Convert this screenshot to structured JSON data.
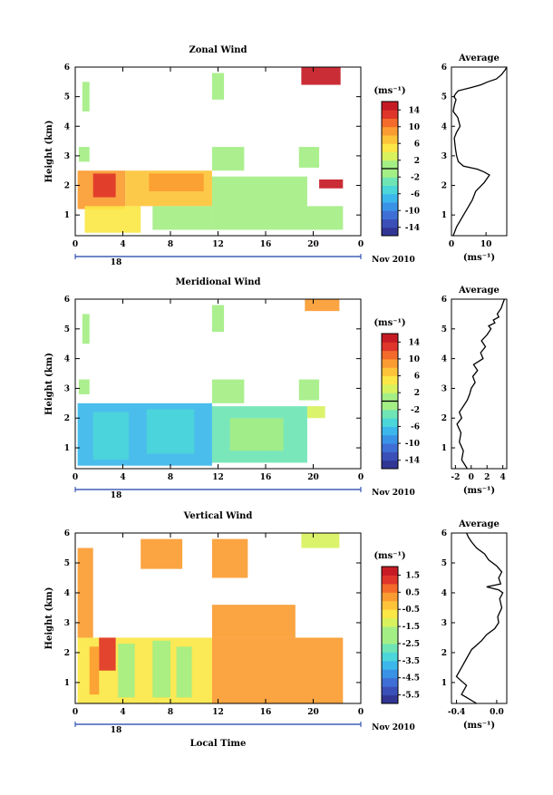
{
  "figure": {
    "date_label": "Nov 2010",
    "day_label": "18",
    "xlabel": "Local Time",
    "ylabel": "Height (km)",
    "avg_title": "Average",
    "unit": "(ms⁻¹)"
  },
  "chart_data": [
    {
      "type": "heatmap",
      "title": "Zonal Wind",
      "xlabel": "Local Time",
      "ylabel": "Height (km)",
      "x_ticks": [
        "0",
        "4",
        "8",
        "12",
        "16",
        "20",
        "0"
      ],
      "x_range": [
        0,
        24
      ],
      "y_ticks": [
        "1",
        "2",
        "3",
        "4",
        "5",
        "6"
      ],
      "y_range": [
        0.3,
        6
      ],
      "colorbar": {
        "label": "(ms⁻¹)",
        "ticks": [
          "14",
          "10",
          "6",
          "2",
          "-2",
          "-6",
          "-10",
          "-14"
        ],
        "range": [
          -16,
          16
        ],
        "zero_line": 0
      },
      "layers": [
        {
          "x0": 0.2,
          "x1": 4.2,
          "y0": 1.2,
          "y1": 2.5,
          "value": 8
        },
        {
          "x0": 1.5,
          "x1": 3.4,
          "y0": 1.6,
          "y1": 2.4,
          "value": 12
        },
        {
          "x0": 4.2,
          "x1": 11.5,
          "y0": 1.3,
          "y1": 2.5,
          "value": 6
        },
        {
          "x0": 6.2,
          "x1": 10.8,
          "y0": 1.8,
          "y1": 2.4,
          "value": 9
        },
        {
          "x0": 0.8,
          "x1": 5.5,
          "y0": 0.4,
          "y1": 1.3,
          "value": 4
        },
        {
          "x0": 6.5,
          "x1": 11.5,
          "y0": 0.5,
          "y1": 1.3,
          "value": 1
        },
        {
          "x0": 11.5,
          "x1": 19.5,
          "y0": 0.5,
          "y1": 2.3,
          "value": -1
        },
        {
          "x0": 19.5,
          "x1": 22.5,
          "y0": 0.5,
          "y1": 1.3,
          "value": -1
        },
        {
          "x0": 11.5,
          "x1": 14.2,
          "y0": 2.5,
          "y1": 3.3,
          "value": -1
        },
        {
          "x0": 18.8,
          "x1": 20.5,
          "y0": 2.6,
          "y1": 3.3,
          "value": 0
        },
        {
          "x0": 20.5,
          "x1": 22.5,
          "y0": 1.9,
          "y1": 2.2,
          "value": 14
        },
        {
          "x0": 19.0,
          "x1": 22.3,
          "y0": 5.4,
          "y1": 6.0,
          "value": 15
        },
        {
          "x0": 11.5,
          "x1": 12.5,
          "y0": 4.9,
          "y1": 5.8,
          "value": 0
        },
        {
          "x0": 0.6,
          "x1": 1.2,
          "y0": 4.5,
          "y1": 5.5,
          "value": 0
        },
        {
          "x0": 0.3,
          "x1": 1.2,
          "y0": 2.8,
          "y1": 3.3,
          "value": 0
        }
      ],
      "average": {
        "title": "Average",
        "xlabel": "(ms⁻¹)",
        "x_ticks": [
          "0",
          "10"
        ],
        "x_range": [
          0,
          16
        ],
        "y_range": [
          0.3,
          6
        ],
        "x": [
          0.5,
          1.5,
          3.0,
          4.5,
          6.0,
          7.0,
          9.5,
          11.0,
          9.5,
          7.5,
          3.5,
          2.0,
          1.5,
          1.2,
          1.0,
          0.8,
          1.5,
          2.5,
          1.8,
          0.5,
          0.8,
          1.3,
          0.7,
          1.2,
          2.0,
          5.5,
          8.5,
          10.5,
          13.0,
          14.5,
          15.5,
          16.0
        ],
        "y": [
          0.3,
          0.6,
          0.9,
          1.2,
          1.5,
          1.8,
          2.1,
          2.35,
          2.45,
          2.55,
          2.65,
          2.8,
          3.0,
          3.2,
          3.4,
          3.6,
          3.8,
          4.0,
          4.3,
          4.5,
          4.7,
          4.9,
          5.0,
          5.1,
          5.2,
          5.3,
          5.4,
          5.5,
          5.6,
          5.75,
          5.9,
          6.0
        ]
      }
    },
    {
      "type": "heatmap",
      "title": "Meridional Wind",
      "xlabel": "Local Time",
      "ylabel": "Height (km)",
      "x_ticks": [
        "0",
        "4",
        "8",
        "12",
        "16",
        "20",
        "0"
      ],
      "x_range": [
        0,
        24
      ],
      "y_ticks": [
        "1",
        "2",
        "3",
        "4",
        "5",
        "6"
      ],
      "y_range": [
        0.3,
        6
      ],
      "colorbar": {
        "label": "(ms⁻¹)",
        "ticks": [
          "14",
          "10",
          "6",
          "2",
          "-2",
          "-6",
          "-10",
          "-14"
        ],
        "range": [
          -16,
          16
        ],
        "zero_line": 0
      },
      "layers": [
        {
          "x0": 0.2,
          "x1": 11.5,
          "y0": 0.4,
          "y1": 2.5,
          "value": -7
        },
        {
          "x0": 1.5,
          "x1": 4.5,
          "y0": 0.6,
          "y1": 2.2,
          "value": -4
        },
        {
          "x0": 6.0,
          "x1": 10.0,
          "y0": 0.8,
          "y1": 2.3,
          "value": -5
        },
        {
          "x0": 11.5,
          "x1": 19.5,
          "y0": 0.5,
          "y1": 2.4,
          "value": -2
        },
        {
          "x0": 13.0,
          "x1": 17.5,
          "y0": 0.9,
          "y1": 2.0,
          "value": 0
        },
        {
          "x0": 19.5,
          "x1": 21.0,
          "y0": 2.0,
          "y1": 2.4,
          "value": 3
        },
        {
          "x0": 11.5,
          "x1": 14.2,
          "y0": 2.5,
          "y1": 3.3,
          "value": -1
        },
        {
          "x0": 18.8,
          "x1": 20.5,
          "y0": 2.6,
          "y1": 3.3,
          "value": 0
        },
        {
          "x0": 19.3,
          "x1": 22.2,
          "y0": 5.6,
          "y1": 6.0,
          "value": 8
        },
        {
          "x0": 11.5,
          "x1": 12.5,
          "y0": 4.9,
          "y1": 5.8,
          "value": 0
        },
        {
          "x0": 0.6,
          "x1": 1.2,
          "y0": 4.5,
          "y1": 5.5,
          "value": 0
        },
        {
          "x0": 0.3,
          "x1": 1.2,
          "y0": 2.8,
          "y1": 3.3,
          "value": 0
        }
      ],
      "average": {
        "title": "Average",
        "xlabel": "(ms⁻¹)",
        "x_ticks": [
          "-2",
          "0",
          "2",
          "4"
        ],
        "x_range": [
          -2.5,
          4.5
        ],
        "y_range": [
          0.3,
          6
        ],
        "x": [
          -0.5,
          -1.2,
          -1.0,
          -1.5,
          -1.3,
          -1.8,
          -1.2,
          -1.5,
          -1.0,
          -0.5,
          -0.2,
          0.0,
          0.5,
          0.2,
          0.8,
          0.3,
          1.5,
          1.2,
          1.8,
          1.3,
          2.0,
          2.5,
          2.2,
          3.0,
          2.8,
          3.5,
          3.3,
          3.8,
          4.0,
          4.2
        ],
        "y": [
          0.3,
          0.6,
          0.9,
          1.2,
          1.5,
          1.8,
          2.0,
          2.2,
          2.4,
          2.6,
          2.8,
          3.0,
          3.2,
          3.4,
          3.6,
          3.8,
          4.0,
          4.2,
          4.4,
          4.6,
          4.8,
          5.0,
          5.1,
          5.2,
          5.3,
          5.4,
          5.5,
          5.7,
          5.85,
          6.0
        ]
      }
    },
    {
      "type": "heatmap",
      "title": "Vertical Wind",
      "xlabel": "Local Time",
      "ylabel": "Height (km)",
      "x_ticks": [
        "0",
        "4",
        "8",
        "12",
        "16",
        "20",
        "0"
      ],
      "x_range": [
        0,
        24
      ],
      "y_ticks": [
        "1",
        "2",
        "3",
        "4",
        "5",
        "6"
      ],
      "y_range": [
        0.3,
        6
      ],
      "colorbar": {
        "label": "(ms⁻¹)",
        "ticks": [
          "1.5",
          "0.5",
          "-0.5",
          "-1.5",
          "-2.5",
          "-3.5",
          "-4.5",
          "-5.5"
        ],
        "range": [
          -6,
          2
        ]
      },
      "layers": [
        {
          "x0": 0.2,
          "x1": 11.5,
          "y0": 0.3,
          "y1": 2.5,
          "value": -0.9
        },
        {
          "x0": 2.0,
          "x1": 3.4,
          "y0": 1.4,
          "y1": 2.5,
          "value": 1.2
        },
        {
          "x0": 1.2,
          "x1": 2.0,
          "y0": 0.6,
          "y1": 2.2,
          "value": 0.3
        },
        {
          "x0": 6.5,
          "x1": 8.0,
          "y0": 0.5,
          "y1": 2.4,
          "value": -2.2
        },
        {
          "x0": 3.6,
          "x1": 5.0,
          "y0": 0.5,
          "y1": 2.3,
          "value": -1.8
        },
        {
          "x0": 8.5,
          "x1": 9.8,
          "y0": 0.5,
          "y1": 2.2,
          "value": -2.0
        },
        {
          "x0": 11.5,
          "x1": 22.5,
          "y0": 0.3,
          "y1": 2.5,
          "value": 0.2
        },
        {
          "x0": 0.2,
          "x1": 1.5,
          "y0": 2.5,
          "y1": 5.5,
          "value": 0.3
        },
        {
          "x0": 11.5,
          "x1": 18.5,
          "y0": 2.5,
          "y1": 3.6,
          "value": 0.2
        },
        {
          "x0": 11.5,
          "x1": 14.5,
          "y0": 4.5,
          "y1": 5.8,
          "value": 0.1
        },
        {
          "x0": 19.0,
          "x1": 22.2,
          "y0": 5.5,
          "y1": 6.0,
          "value": -1.3
        },
        {
          "x0": 5.5,
          "x1": 9.0,
          "y0": 4.8,
          "y1": 5.8,
          "value": 0.3
        }
      ],
      "average": {
        "title": "Average",
        "xlabel": "(ms⁻¹)",
        "x_ticks": [
          "-0.4",
          "0.0"
        ],
        "x_range": [
          -0.45,
          0.1
        ],
        "y_range": [
          0.3,
          6
        ],
        "x": [
          -0.2,
          -0.35,
          -0.3,
          -0.4,
          -0.35,
          -0.3,
          -0.25,
          -0.15,
          -0.1,
          -0.02,
          0.02,
          0.01,
          0.05,
          0.03,
          0.06,
          0.02,
          -0.1,
          0.04,
          0.02,
          0.05,
          0.0,
          -0.08,
          -0.12,
          -0.2,
          -0.25,
          -0.28,
          -0.3
        ],
        "y": [
          0.3,
          0.6,
          0.9,
          1.2,
          1.5,
          1.8,
          2.1,
          2.4,
          2.6,
          2.8,
          3.0,
          3.2,
          3.5,
          3.8,
          4.0,
          4.1,
          4.2,
          4.3,
          4.5,
          4.7,
          4.9,
          5.1,
          5.3,
          5.5,
          5.7,
          5.85,
          6.0
        ]
      }
    }
  ]
}
